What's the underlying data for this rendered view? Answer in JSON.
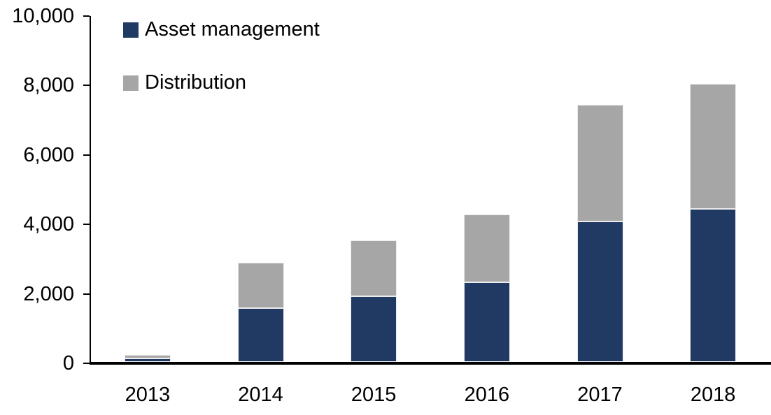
{
  "chart_data": {
    "type": "bar",
    "stacked": true,
    "title": "",
    "xlabel": "",
    "ylabel": "",
    "categories": [
      "2013",
      "2014",
      "2015",
      "2016",
      "2017",
      "2018"
    ],
    "series": [
      {
        "name": "Asset management",
        "color": "#213A64",
        "values": [
          100,
          1550,
          1900,
          2300,
          4050,
          4400
        ]
      },
      {
        "name": "Distribution",
        "color": "#A6A6A6",
        "values": [
          100,
          1300,
          1600,
          1950,
          3350,
          3600
        ]
      }
    ],
    "totals": [
      200,
      2850,
      3500,
      4250,
      7400,
      8000
    ],
    "ylim": [
      0,
      10000
    ],
    "ytick_interval": 2000,
    "ytick_labels": [
      "0",
      "2,000",
      "4,000",
      "6,000",
      "8,000",
      "10,000"
    ],
    "grid": false,
    "legend_position": "top-left",
    "axis_color": "#000000",
    "text_color": "#000000",
    "background_color": "#FFFFFF"
  }
}
